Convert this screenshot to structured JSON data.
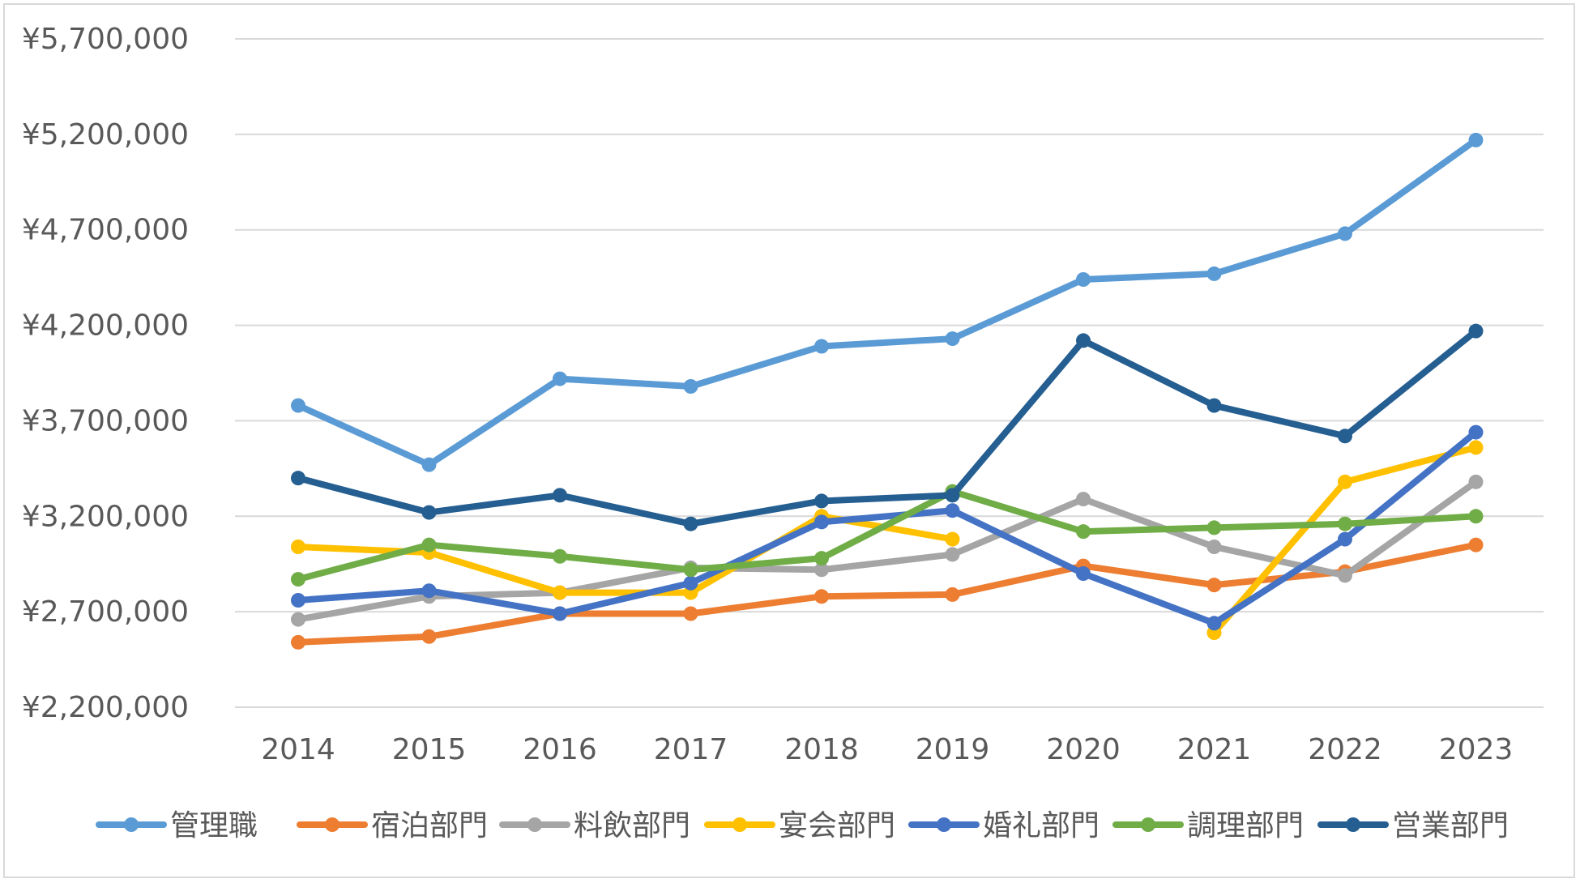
{
  "chart_data": {
    "type": "line",
    "title": "",
    "xlabel": "",
    "ylabel": "",
    "categories": [
      "2014",
      "2015",
      "2016",
      "2017",
      "2018",
      "2019",
      "2020",
      "2021",
      "2022",
      "2023"
    ],
    "ylim": [
      2200000,
      5700000
    ],
    "yticks": [
      2200000,
      2700000,
      3200000,
      3700000,
      4200000,
      4700000,
      5200000,
      5700000
    ],
    "ytick_labels": [
      "¥2,200,000",
      "¥2,700,000",
      "¥3,200,000",
      "¥3,700,000",
      "¥4,200,000",
      "¥4,700,000",
      "¥5,200,000",
      "¥5,700,000"
    ],
    "grid": true,
    "legend_position": "bottom",
    "series": [
      {
        "name": "管理職",
        "color": "#5b9bd5",
        "values": [
          3780000,
          3470000,
          3920000,
          3880000,
          4090000,
          4130000,
          4440000,
          4470000,
          4680000,
          5170000
        ]
      },
      {
        "name": "宿泊部門",
        "color": "#ed7d31",
        "values": [
          2540000,
          2570000,
          2690000,
          2690000,
          2780000,
          2790000,
          2940000,
          2840000,
          2910000,
          3050000
        ]
      },
      {
        "name": "料飲部門",
        "color": "#a5a5a5",
        "values": [
          2660000,
          2780000,
          2800000,
          2930000,
          2920000,
          3000000,
          3290000,
          3040000,
          2890000,
          3380000
        ]
      },
      {
        "name": "宴会部門",
        "color": "#ffc000",
        "values": [
          3040000,
          3010000,
          2800000,
          2800000,
          3200000,
          3080000,
          null,
          2590000,
          3380000,
          3560000
        ]
      },
      {
        "name": "婚礼部門",
        "color": "#4472c4",
        "values": [
          2760000,
          2810000,
          2690000,
          2850000,
          3170000,
          3230000,
          2900000,
          2640000,
          3080000,
          3640000
        ]
      },
      {
        "name": "調理部門",
        "color": "#70ad47",
        "values": [
          2870000,
          3050000,
          2990000,
          2920000,
          2980000,
          3330000,
          3120000,
          3140000,
          3160000,
          3200000
        ]
      },
      {
        "name": "営業部門",
        "color": "#255e91",
        "values": [
          3400000,
          3220000,
          3310000,
          3160000,
          3280000,
          3310000,
          4120000,
          3780000,
          3620000,
          4170000
        ]
      }
    ]
  }
}
